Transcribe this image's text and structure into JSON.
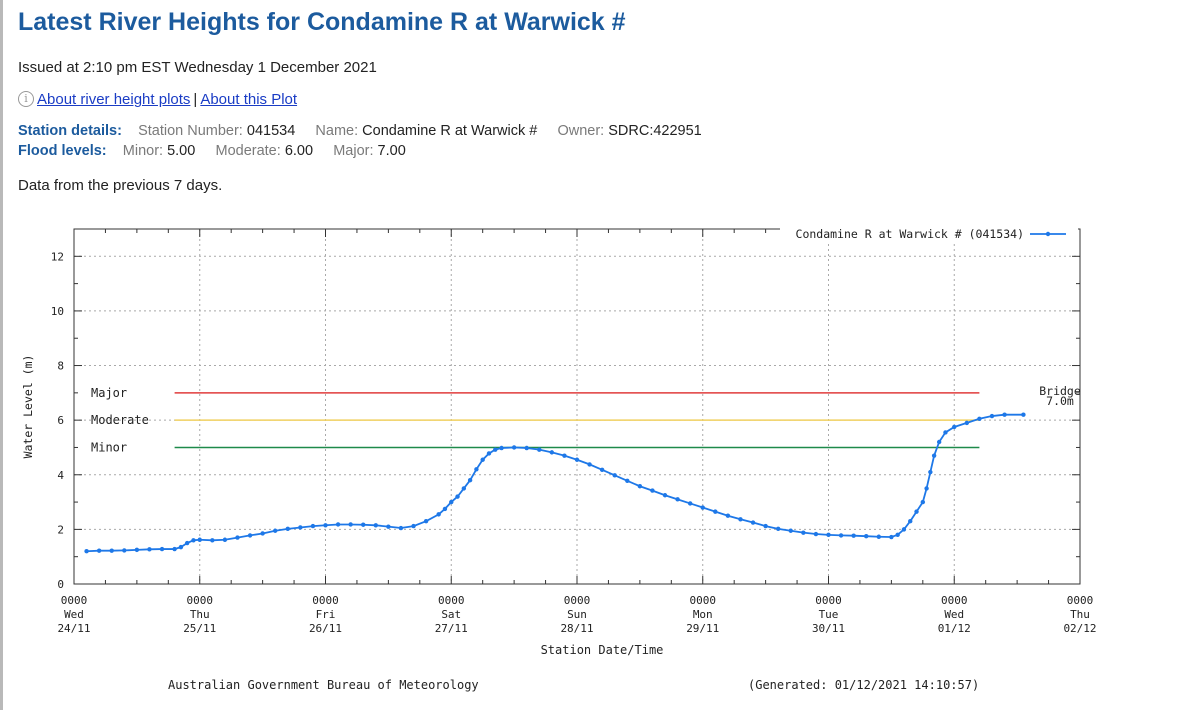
{
  "page": {
    "title": "Latest River Heights for Condamine R at Warwick #",
    "issued": "Issued at 2:10 pm EST Wednesday 1 December 2021",
    "links": {
      "about_plots": "About river height plots",
      "separator": "|",
      "about_plot": "About this Plot"
    },
    "station": {
      "heading": "Station details:",
      "number_label": "Station Number:",
      "number": "041534",
      "name_label": "Name:",
      "name": "Condamine R at Warwick #",
      "owner_label": "Owner:",
      "owner": "SDRC:422951"
    },
    "flood": {
      "heading": "Flood levels:",
      "minor_label": "Minor:",
      "minor": "5.00",
      "moderate_label": "Moderate:",
      "moderate": "6.00",
      "major_label": "Major:",
      "major": "7.00"
    },
    "previous": "Data from the previous 7 days."
  },
  "chart_data": {
    "type": "line",
    "ylabel": "Water Level (m)",
    "xlabel": "Station Date/Time",
    "ylim": [
      0,
      13
    ],
    "yticks": [
      0,
      2,
      4,
      6,
      8,
      10,
      12
    ],
    "xlim": [
      0,
      7
    ],
    "xticks": [
      {
        "x": 0,
        "time": "0000",
        "day": "Wed",
        "date": "24/11"
      },
      {
        "x": 1,
        "time": "0000",
        "day": "Thu",
        "date": "25/11"
      },
      {
        "x": 2,
        "time": "0000",
        "day": "Fri",
        "date": "26/11"
      },
      {
        "x": 3,
        "time": "0000",
        "day": "Sat",
        "date": "27/11"
      },
      {
        "x": 4,
        "time": "0000",
        "day": "Sun",
        "date": "28/11"
      },
      {
        "x": 5,
        "time": "0000",
        "day": "Mon",
        "date": "29/11"
      },
      {
        "x": 6,
        "time": "0000",
        "day": "Tue",
        "date": "30/11"
      },
      {
        "x": 7,
        "time": "0000",
        "day": "Wed",
        "date": "01/12"
      },
      {
        "x": 8,
        "time": "0000",
        "day": "Thu",
        "date": "02/12"
      }
    ],
    "grid": true,
    "legend": {
      "label": "Condamine R at Warwick # (041534)",
      "placement": "top-right"
    },
    "thresholds": [
      {
        "name": "Major",
        "value": 7.0,
        "color": "#e03c3c"
      },
      {
        "name": "Moderate",
        "value": 6.0,
        "color": "#f0d060"
      },
      {
        "name": "Minor",
        "value": 5.0,
        "color": "#1e8a4a"
      }
    ],
    "threshold_x_range": [
      0.8,
      7.2
    ],
    "annotation": {
      "line1": "Bridge",
      "line2": "7.0m"
    },
    "series": [
      {
        "name": "Condamine R at Warwick # (041534)",
        "color": "#1e78e8",
        "points": [
          [
            0.1,
            1.2
          ],
          [
            0.2,
            1.22
          ],
          [
            0.3,
            1.22
          ],
          [
            0.4,
            1.23
          ],
          [
            0.5,
            1.25
          ],
          [
            0.6,
            1.27
          ],
          [
            0.7,
            1.28
          ],
          [
            0.8,
            1.28
          ],
          [
            0.85,
            1.35
          ],
          [
            0.9,
            1.5
          ],
          [
            0.95,
            1.6
          ],
          [
            1.0,
            1.62
          ],
          [
            1.1,
            1.6
          ],
          [
            1.2,
            1.62
          ],
          [
            1.3,
            1.7
          ],
          [
            1.4,
            1.78
          ],
          [
            1.5,
            1.85
          ],
          [
            1.6,
            1.95
          ],
          [
            1.7,
            2.02
          ],
          [
            1.8,
            2.07
          ],
          [
            1.9,
            2.12
          ],
          [
            2.0,
            2.15
          ],
          [
            2.1,
            2.18
          ],
          [
            2.2,
            2.18
          ],
          [
            2.3,
            2.17
          ],
          [
            2.4,
            2.15
          ],
          [
            2.5,
            2.1
          ],
          [
            2.6,
            2.05
          ],
          [
            2.7,
            2.12
          ],
          [
            2.8,
            2.3
          ],
          [
            2.9,
            2.55
          ],
          [
            2.95,
            2.75
          ],
          [
            3.0,
            3.0
          ],
          [
            3.05,
            3.2
          ],
          [
            3.1,
            3.5
          ],
          [
            3.15,
            3.8
          ],
          [
            3.2,
            4.2
          ],
          [
            3.25,
            4.55
          ],
          [
            3.3,
            4.78
          ],
          [
            3.35,
            4.92
          ],
          [
            3.4,
            4.98
          ],
          [
            3.5,
            5.0
          ],
          [
            3.6,
            4.98
          ],
          [
            3.7,
            4.92
          ],
          [
            3.8,
            4.82
          ],
          [
            3.9,
            4.7
          ],
          [
            4.0,
            4.55
          ],
          [
            4.1,
            4.38
          ],
          [
            4.2,
            4.18
          ],
          [
            4.3,
            3.98
          ],
          [
            4.4,
            3.78
          ],
          [
            4.5,
            3.58
          ],
          [
            4.6,
            3.42
          ],
          [
            4.7,
            3.25
          ],
          [
            4.8,
            3.1
          ],
          [
            4.9,
            2.95
          ],
          [
            5.0,
            2.8
          ],
          [
            5.1,
            2.65
          ],
          [
            5.2,
            2.5
          ],
          [
            5.3,
            2.37
          ],
          [
            5.4,
            2.25
          ],
          [
            5.5,
            2.12
          ],
          [
            5.6,
            2.02
          ],
          [
            5.7,
            1.95
          ],
          [
            5.8,
            1.88
          ],
          [
            5.9,
            1.83
          ],
          [
            6.0,
            1.8
          ],
          [
            6.1,
            1.78
          ],
          [
            6.2,
            1.77
          ],
          [
            6.3,
            1.75
          ],
          [
            6.4,
            1.73
          ],
          [
            6.5,
            1.72
          ],
          [
            6.55,
            1.8
          ],
          [
            6.6,
            2.0
          ],
          [
            6.65,
            2.3
          ],
          [
            6.7,
            2.65
          ],
          [
            6.75,
            3.0
          ],
          [
            6.78,
            3.5
          ],
          [
            6.81,
            4.1
          ],
          [
            6.84,
            4.7
          ],
          [
            6.88,
            5.2
          ],
          [
            6.93,
            5.55
          ],
          [
            7.0,
            5.75
          ],
          [
            7.1,
            5.9
          ],
          [
            7.2,
            6.05
          ],
          [
            7.3,
            6.15
          ],
          [
            7.4,
            6.2
          ],
          [
            7.55,
            6.2
          ]
        ]
      }
    ],
    "footer_left": "Australian Government Bureau of Meteorology",
    "footer_right": "(Generated: 01/12/2021 14:10:57)"
  }
}
